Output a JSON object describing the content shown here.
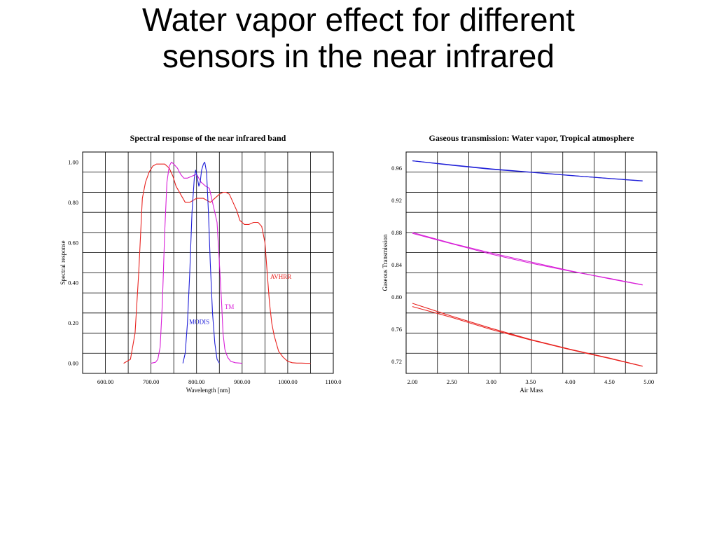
{
  "slide": {
    "title_line1": "Water vapor effect for different",
    "title_line2": "sensors in the near infrared"
  },
  "chart_data": [
    {
      "type": "line",
      "title": "Spectral response of the near infrared band",
      "xlabel": "Wavelength [nm]",
      "ylabel": "Spectral response",
      "xlim": [
        550,
        1100
      ],
      "ylim": [
        -0.05,
        1.05
      ],
      "xticks": [
        600,
        700,
        800,
        900,
        1000,
        1100
      ],
      "xtick_labels": [
        "600.00",
        "700.00",
        "800.00",
        "900.00",
        "1000.00",
        "1100.0"
      ],
      "yticks": [
        0,
        0.2,
        0.4,
        0.6,
        0.8,
        1.0
      ],
      "ytick_labels": [
        "0.00",
        "0.20",
        "0.40",
        "0.60",
        "0.80",
        "1.00"
      ],
      "grid": true,
      "series": [
        {
          "name": "AVHRR",
          "color": "#e8231f",
          "x": [
            640,
            655,
            665,
            673,
            681,
            688,
            696,
            704,
            712,
            720,
            730,
            740,
            748,
            755,
            765,
            775,
            785,
            800,
            815,
            830,
            840,
            850,
            858,
            865,
            872,
            880,
            888,
            895,
            905,
            915,
            925,
            935,
            943,
            950,
            955,
            960,
            965,
            970,
            975,
            980,
            990,
            1000,
            1010,
            1020,
            1030,
            1040,
            1050
          ],
          "y": [
            0,
            0.02,
            0.15,
            0.45,
            0.82,
            0.9,
            0.95,
            0.98,
            0.99,
            0.99,
            0.99,
            0.97,
            0.93,
            0.88,
            0.84,
            0.8,
            0.8,
            0.82,
            0.82,
            0.8,
            0.82,
            0.84,
            0.85,
            0.85,
            0.84,
            0.8,
            0.76,
            0.71,
            0.69,
            0.69,
            0.7,
            0.7,
            0.68,
            0.6,
            0.45,
            0.3,
            0.2,
            0.14,
            0.1,
            0.06,
            0.03,
            0.01,
            0.003,
            0.001,
            0.001,
            0,
            0
          ]
        },
        {
          "name": "TM",
          "color": "#d81fd8",
          "x": [
            700,
            710,
            715,
            720,
            725,
            730,
            735,
            740,
            745,
            750,
            758,
            765,
            772,
            780,
            790,
            800,
            810,
            820,
            828,
            835,
            840,
            845,
            850,
            855,
            858,
            862,
            868,
            875,
            885,
            895,
            900
          ],
          "y": [
            0,
            0.005,
            0.02,
            0.08,
            0.3,
            0.65,
            0.9,
            0.98,
            1.0,
            0.99,
            0.97,
            0.94,
            0.92,
            0.92,
            0.93,
            0.94,
            0.9,
            0.88,
            0.87,
            0.8,
            0.75,
            0.7,
            0.5,
            0.3,
            0.15,
            0.07,
            0.03,
            0.01,
            0.003,
            0.001,
            0
          ]
        },
        {
          "name": "MODIS",
          "color": "#2020d8",
          "x": [
            770,
            775,
            780,
            785,
            790,
            795,
            798,
            801,
            805,
            808,
            811,
            815,
            818,
            822,
            826,
            830,
            835,
            840,
            845,
            850
          ],
          "y": [
            0,
            0.05,
            0.2,
            0.45,
            0.75,
            0.92,
            0.96,
            0.93,
            0.88,
            0.9,
            0.96,
            0.99,
            1.0,
            0.95,
            0.75,
            0.5,
            0.25,
            0.1,
            0.02,
            0
          ]
        }
      ],
      "annotations": [
        {
          "text": "AVHRR",
          "x": 985,
          "y": 0.42,
          "color": "#e8231f"
        },
        {
          "text": "TM",
          "x": 872,
          "y": 0.27,
          "color": "#d81fd8"
        },
        {
          "text": "MODIS",
          "x": 806,
          "y": 0.195,
          "color": "#2020d8"
        }
      ]
    },
    {
      "type": "line",
      "title": "Gaseous transmission: Water vapor, Tropical atmosphere",
      "xlabel": "Air Mass",
      "ylabel": "Gaseous Transmission",
      "xlim": [
        1.92,
        5.1
      ],
      "ylim": [
        0.705,
        0.98
      ],
      "xticks": [
        2.0,
        2.5,
        3.0,
        3.5,
        4.0,
        4.5,
        5.0
      ],
      "xtick_labels": [
        "2.00",
        "2.50",
        "3.00",
        "3.50",
        "4.00",
        "4.50",
        "5.00"
      ],
      "yticks": [
        0.72,
        0.76,
        0.8,
        0.84,
        0.88,
        0.92,
        0.96
      ],
      "ytick_labels": [
        "0.72",
        "0.76",
        "0.80",
        "0.84",
        "0.88",
        "0.92",
        "0.96"
      ],
      "grid": true,
      "series": [
        {
          "color": "#2020d8",
          "x": [
            2.0,
            2.5,
            3.0,
            3.5,
            4.0,
            4.5,
            4.92
          ],
          "y": [
            0.969,
            0.964,
            0.959,
            0.955,
            0.951,
            0.947,
            0.944
          ]
        },
        {
          "color": "#2020d8",
          "x": [
            2.0,
            2.5,
            3.0,
            3.5,
            4.0,
            4.5,
            4.92
          ],
          "y": [
            0.969,
            0.9635,
            0.9585,
            0.9548,
            0.9508,
            0.9472,
            0.9442
          ]
        },
        {
          "color": "#d81fd8",
          "x": [
            2.0,
            2.5,
            3.0,
            3.5,
            4.0,
            4.5,
            4.92
          ],
          "y": [
            0.879,
            0.866,
            0.853,
            0.842,
            0.832,
            0.823,
            0.815
          ]
        },
        {
          "color": "#d81fd8",
          "x": [
            2.0,
            2.5,
            3.0,
            3.5,
            4.0,
            4.5,
            4.92
          ],
          "y": [
            0.88,
            0.8665,
            0.8545,
            0.8435,
            0.8325,
            0.8225,
            0.8148
          ]
        },
        {
          "color": "#e8231f",
          "x": [
            2.0,
            2.5,
            3.0,
            3.5,
            4.0,
            4.5,
            4.92
          ],
          "y": [
            0.792,
            0.776,
            0.761,
            0.747,
            0.735,
            0.724,
            0.714
          ]
        },
        {
          "color": "#e8231f",
          "x": [
            2.0,
            2.5,
            3.0,
            3.5,
            4.0,
            4.5,
            4.92
          ],
          "y": [
            0.788,
            0.7745,
            0.7595,
            0.7465,
            0.7345,
            0.7235,
            0.7138
          ]
        }
      ]
    }
  ]
}
